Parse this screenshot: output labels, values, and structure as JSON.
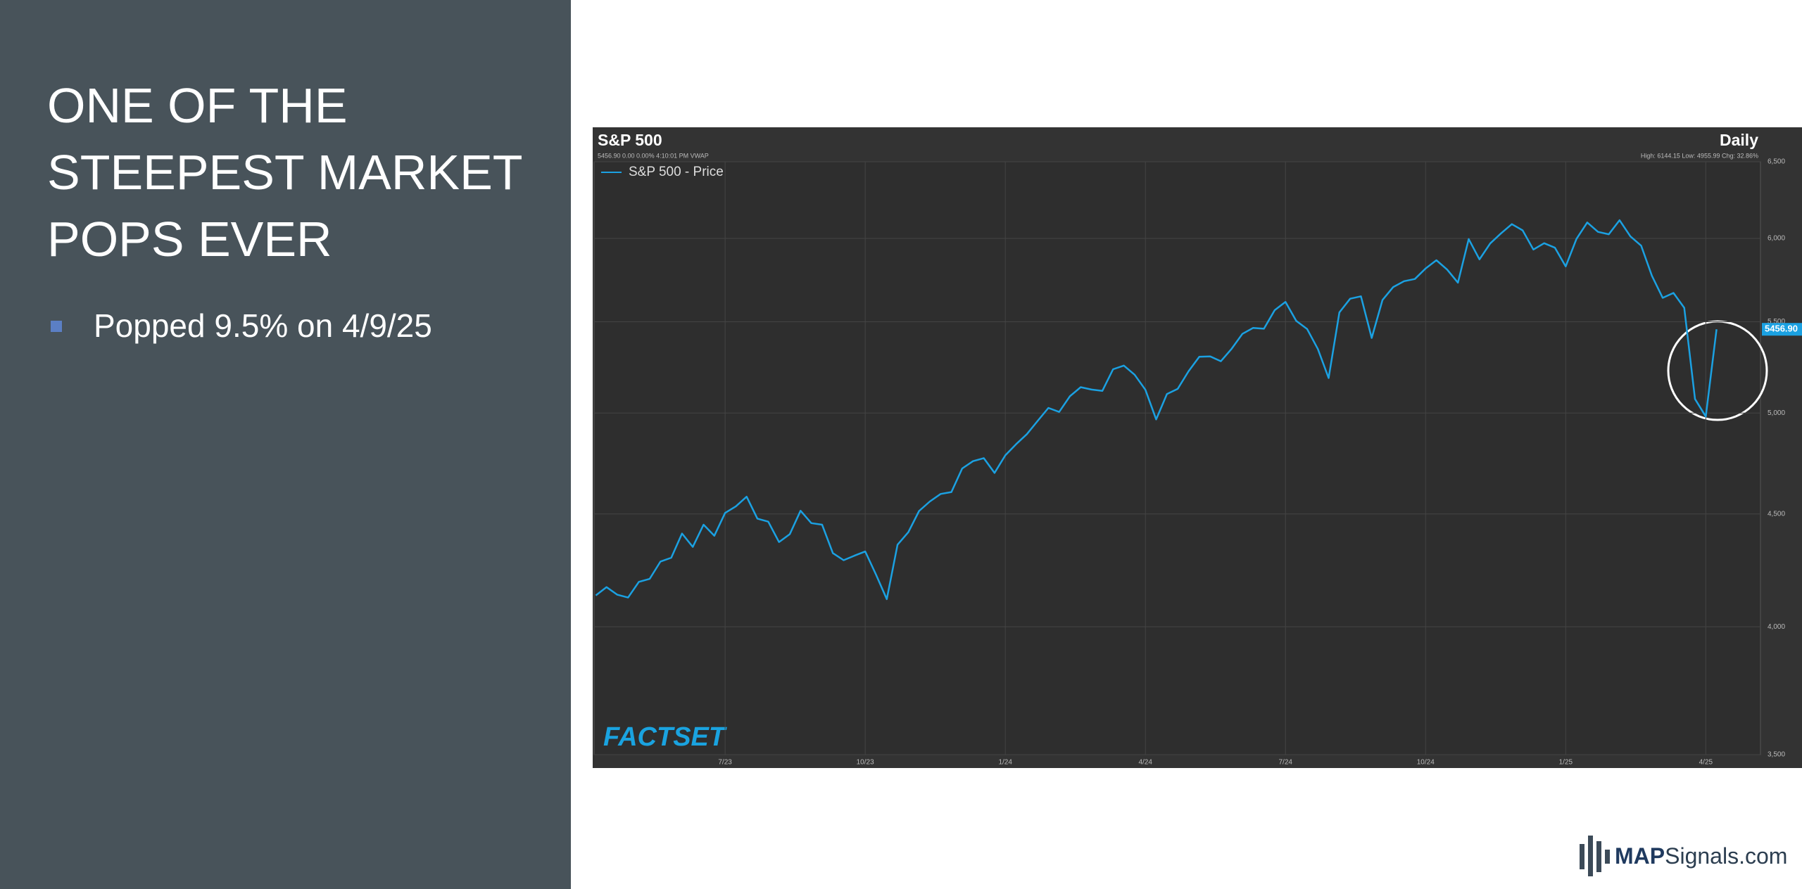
{
  "slide": {
    "title_lines": [
      "ONE OF THE",
      "STEEPEST MARKET",
      "POPS EVER"
    ],
    "bullets": [
      "Popped 9.5% on 4/9/25"
    ]
  },
  "chart_data": {
    "type": "line",
    "title": "S&P 500",
    "frequency": "Daily",
    "quote_line": "5456.90 0.00 0.00% 4:10:01 PM VWAP",
    "stats_line": "High: 6144.15 Low: 4955.99 Chg: 32.86%",
    "categories": [
      null,
      null,
      null,
      null,
      null,
      null,
      null,
      null,
      null,
      null,
      null,
      null,
      "7/23",
      null,
      null,
      null,
      null,
      null,
      null,
      null,
      null,
      null,
      null,
      null,
      null,
      "10/23",
      null,
      null,
      null,
      null,
      null,
      null,
      null,
      null,
      null,
      null,
      null,
      null,
      "1/24",
      null,
      null,
      null,
      null,
      null,
      null,
      null,
      null,
      null,
      null,
      null,
      null,
      "4/24",
      null,
      null,
      null,
      null,
      null,
      null,
      null,
      null,
      null,
      null,
      null,
      null,
      "7/24",
      null,
      null,
      null,
      null,
      null,
      null,
      null,
      null,
      null,
      null,
      null,
      null,
      "10/24",
      null,
      null,
      null,
      null,
      null,
      null,
      null,
      null,
      null,
      null,
      null,
      null,
      "1/25",
      null,
      null,
      null,
      null,
      null,
      null,
      null,
      null,
      null,
      null,
      null,
      null,
      "4/25",
      null
    ],
    "series": [
      {
        "name": "S&P 500 - Price",
        "color": "#1ba1e2",
        "values": [
          4133,
          4169,
          4136,
          4124,
          4192,
          4205,
          4282,
          4299,
          4409,
          4348,
          4450,
          4399,
          4505,
          4536,
          4582,
          4478,
          4464,
          4370,
          4406,
          4515,
          4457,
          4450,
          4320,
          4288,
          4308,
          4327,
          4224,
          4117,
          4358,
          4415,
          4514,
          4559,
          4595,
          4604,
          4719,
          4755,
          4770,
          4697,
          4784,
          4840,
          4891,
          4959,
          5027,
          5006,
          5089,
          5137,
          5124,
          5117,
          5234,
          5254,
          5204,
          5123,
          4967,
          5100,
          5128,
          5223,
          5303,
          5305,
          5278,
          5347,
          5431,
          5465,
          5460,
          5567,
          5615,
          5505,
          5459,
          5346,
          5186,
          5554,
          5634,
          5648,
          5408,
          5626,
          5703,
          5738,
          5751,
          5815,
          5865,
          5808,
          5729,
          5996,
          5870,
          5969,
          6032,
          6090,
          6051,
          5931,
          5970,
          5942,
          5827,
          5997,
          6101,
          6041,
          6026,
          6115,
          6013,
          5955,
          5770,
          5639,
          5668,
          5581,
          5074,
          4982,
          5456.9
        ]
      }
    ],
    "price_tag_label": "5456.90",
    "ylim": [
      3500,
      6500
    ],
    "yticks": [
      {
        "value": 3500,
        "label": "3,500"
      },
      {
        "value": 4000,
        "label": "4,000"
      },
      {
        "value": 4500,
        "label": "4,500"
      },
      {
        "value": 5000,
        "label": "5,000"
      },
      {
        "value": 5500,
        "label": "5,500"
      },
      {
        "value": 6000,
        "label": "6,000"
      },
      {
        "value": 6500,
        "label": "6,500"
      }
    ],
    "log_scale": true,
    "grid": true,
    "legend": "top-left",
    "watermark": "FACTSET"
  },
  "logo": {
    "bold": "MAP",
    "rest": "Signals.com"
  }
}
